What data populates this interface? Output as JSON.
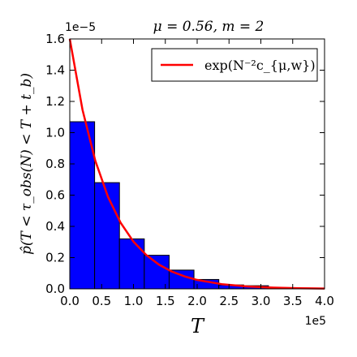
{
  "chart_data": {
    "type": "bar",
    "title": "μ = 0.56, m = 2",
    "xlabel": "T",
    "ylabel": "p̂(T < τ_obs(N) < T + t_b)",
    "x_exponent_label": "1e5",
    "y_exponent_label": "1e−5",
    "xlim": [
      0.0,
      4.0
    ],
    "ylim": [
      0.0,
      1.6
    ],
    "x_ticks": [
      "0.0",
      "0.5",
      "1.0",
      "1.5",
      "2.0",
      "2.5",
      "3.0",
      "3.5",
      "4.0"
    ],
    "y_ticks": [
      "0.0",
      "0.2",
      "0.4",
      "0.6",
      "0.8",
      "1.0",
      "1.2",
      "1.4",
      "1.6"
    ],
    "bin_width": 0.39,
    "histogram": {
      "name": "histogram",
      "color": "#0000ff",
      "bin_starts": [
        0.0,
        0.39,
        0.78,
        1.17,
        1.56,
        1.95,
        2.34,
        2.73,
        3.12,
        3.51
      ],
      "values": [
        1.07,
        0.68,
        0.32,
        0.215,
        0.12,
        0.06,
        0.025,
        0.02,
        0.005,
        0.003
      ]
    },
    "curve": {
      "name": "exp(N^{-2} c_{μ,w})",
      "color": "#ff0000",
      "formula": "y = 1.6 · exp(−x / 0.6)",
      "x": [
        0.0,
        0.2,
        0.4,
        0.6,
        0.8,
        1.0,
        1.2,
        1.4,
        1.6,
        1.8,
        2.0,
        2.4,
        2.8,
        3.2,
        3.6,
        4.0
      ],
      "y": [
        1.6,
        1.146,
        0.821,
        0.589,
        0.422,
        0.302,
        0.217,
        0.155,
        0.111,
        0.08,
        0.057,
        0.029,
        0.015,
        0.008,
        0.004,
        0.002
      ]
    },
    "legend": {
      "position": "top-right",
      "entries": [
        "exp(N⁻²c_{μ,w})"
      ]
    }
  }
}
